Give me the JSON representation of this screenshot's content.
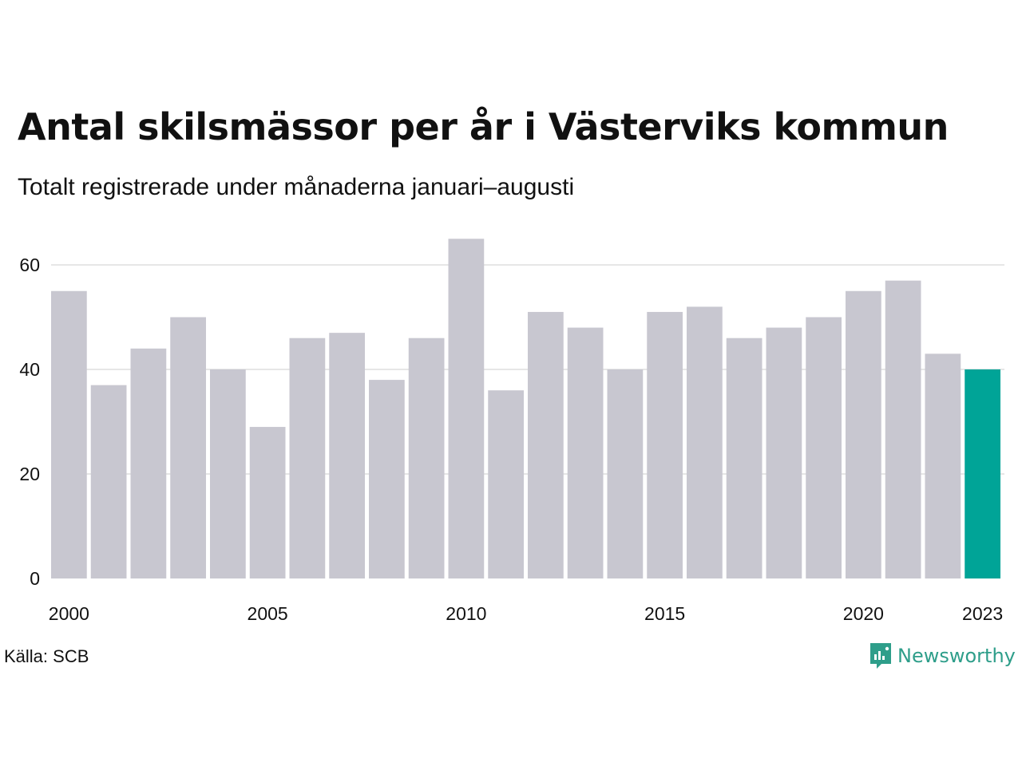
{
  "title": "Antal skilsmässor per år i Västerviks kommun",
  "subtitle": "Totalt registrerade under månaderna januari–augusti",
  "source": "Källa: SCB",
  "brand": {
    "name": "Newsworthy",
    "icon": "newsworthy-logo-icon",
    "color": "#2e9e8a"
  },
  "chart_data": {
    "type": "bar",
    "categories": [
      "2000",
      "2001",
      "2002",
      "2003",
      "2004",
      "2005",
      "2006",
      "2007",
      "2008",
      "2009",
      "2010",
      "2011",
      "2012",
      "2013",
      "2014",
      "2015",
      "2016",
      "2017",
      "2018",
      "2019",
      "2020",
      "2021",
      "2022",
      "2023"
    ],
    "values": [
      55,
      37,
      44,
      50,
      40,
      29,
      46,
      47,
      38,
      46,
      65,
      36,
      51,
      48,
      40,
      51,
      52,
      46,
      48,
      50,
      55,
      57,
      43,
      40
    ],
    "x_tick_labels": [
      "2000",
      "2005",
      "2010",
      "2015",
      "2020",
      "2023"
    ],
    "y_ticks": [
      0,
      20,
      40,
      60
    ],
    "ylim": [
      0,
      66
    ],
    "grid": true,
    "colors": {
      "default": "#c8c7d0",
      "highlight": "#00a497",
      "highlight_category": "2023"
    }
  }
}
